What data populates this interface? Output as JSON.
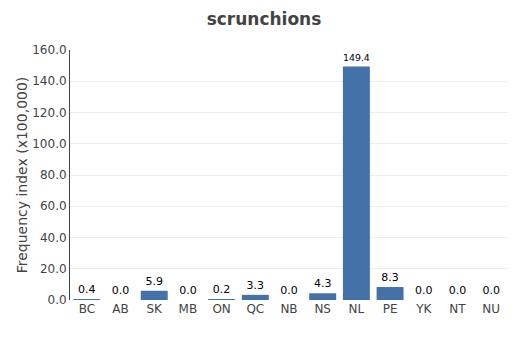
{
  "chart_data": {
    "type": "bar",
    "title": "scrunchions",
    "ylabel": "Frequency index (x100,000)",
    "categories": [
      "BC",
      "AB",
      "SK",
      "MB",
      "ON",
      "QC",
      "NB",
      "NS",
      "NL",
      "PE",
      "YK",
      "NT",
      "NU"
    ],
    "values": [
      0.4,
      0.0,
      5.9,
      0.0,
      0.2,
      3.3,
      0.0,
      4.3,
      149.4,
      8.3,
      0.0,
      0.0,
      0.0
    ],
    "value_labels": [
      "0.4",
      "0.0",
      "5.9",
      "0.0",
      "0.2",
      "3.3",
      "0.0",
      "4.3",
      "149.4",
      "8.3",
      "0.0",
      "0.0",
      "0.0"
    ],
    "color": "#4472a8",
    "ylim": [
      0,
      160.0
    ],
    "yticks": [
      {
        "value": 0,
        "label": "0.0"
      },
      {
        "value": 20,
        "label": "20.0"
      },
      {
        "value": 40,
        "label": "40.0"
      },
      {
        "value": 60,
        "label": "60.0"
      },
      {
        "value": 80,
        "label": "80.0"
      },
      {
        "value": 100,
        "label": "100.0"
      },
      {
        "value": 120,
        "label": "120.0"
      },
      {
        "value": 140,
        "label": "140.0"
      },
      {
        "value": 160,
        "label": "160.0"
      }
    ],
    "grid": true,
    "data_labels": true
  }
}
